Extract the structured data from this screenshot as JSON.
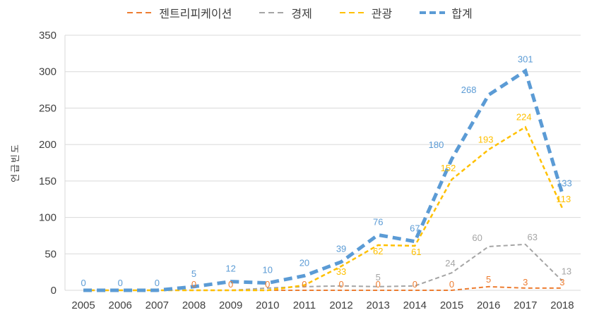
{
  "chart_data": {
    "type": "line",
    "title": "",
    "xlabel": "",
    "ylabel": "언급빈도",
    "ylim": [
      0,
      350
    ],
    "yticks": [
      0,
      50,
      100,
      150,
      200,
      250,
      300,
      350
    ],
    "grid": true,
    "legend_position": "top",
    "categories": [
      "2005",
      "2006",
      "2007",
      "2008",
      "2009",
      "2010",
      "2011",
      "2012",
      "2013",
      "2014",
      "2015",
      "2016",
      "2017",
      "2018"
    ],
    "series": [
      {
        "key": "gentrification",
        "name": "젠트리피케이션",
        "color": "#ED7D31",
        "line_style": "dashed",
        "line_width": 2,
        "values": [
          0,
          0,
          0,
          0,
          0,
          0,
          0,
          0,
          0,
          0,
          0,
          5,
          3,
          3
        ],
        "labels": [
          null,
          null,
          null,
          "0",
          "0",
          "0",
          "0",
          "0",
          "0",
          "0",
          "0",
          "5",
          "3",
          "3"
        ]
      },
      {
        "key": "economy",
        "name": "경제",
        "color": "#A5A5A5",
        "line_style": "dashed",
        "line_width": 2,
        "values": [
          0,
          0,
          0,
          0,
          0,
          3,
          5,
          6,
          5,
          6,
          24,
          60,
          63,
          13
        ],
        "labels": [
          null,
          null,
          null,
          null,
          null,
          null,
          null,
          null,
          "5",
          null,
          "24",
          "60",
          "63",
          "13"
        ]
      },
      {
        "key": "tourism",
        "name": "관광",
        "color": "#FFC000",
        "line_style": "dashed",
        "line_width": 2.5,
        "values": [
          0,
          0,
          0,
          0,
          0,
          0,
          7,
          33,
          62,
          61,
          152,
          193,
          224,
          113
        ],
        "labels": [
          null,
          null,
          null,
          null,
          null,
          null,
          null,
          "33",
          "62",
          "61",
          "152",
          "193",
          "224",
          "113"
        ]
      },
      {
        "key": "total",
        "name": "합계",
        "color": "#5B9BD5",
        "line_style": "dashed",
        "line_width": 5,
        "values": [
          0,
          0,
          0,
          5,
          12,
          10,
          20,
          39,
          76,
          67,
          180,
          268,
          301,
          133
        ],
        "labels": [
          "0",
          "0",
          "0",
          "5",
          "12",
          "10",
          "20",
          "39",
          "76",
          "67",
          "180",
          "268",
          "301",
          "133"
        ]
      }
    ]
  }
}
